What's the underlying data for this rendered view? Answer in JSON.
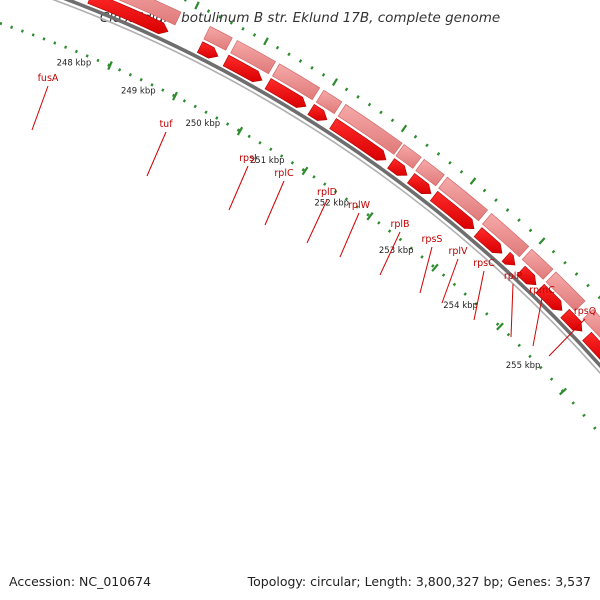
{
  "title": "Clostridium botulinum B str. Eklund 17B, complete genome",
  "footer": {
    "accession": "Accession: NC_010674",
    "stats": "Topology: circular; Length: 3,800,327 bp; Genes: 3,537"
  },
  "colors": {
    "gene_forward": "#ff0000",
    "gene_light": "#f08a8a",
    "backbone": "#777777",
    "tick": "#2e8b2e",
    "label": "#c00000"
  },
  "ticks": [
    {
      "label": "248 kbp"
    },
    {
      "label": "249 kbp"
    },
    {
      "label": "250 kbp"
    },
    {
      "label": "251 kbp"
    },
    {
      "label": "252 kbp"
    },
    {
      "label": "253 kbp"
    },
    {
      "label": "254 kbp"
    },
    {
      "label": "255 kbp"
    }
  ],
  "genes": [
    {
      "name": "fusA"
    },
    {
      "name": "tuf"
    },
    {
      "name": "rpsJ"
    },
    {
      "name": "rplC"
    },
    {
      "name": "rplD"
    },
    {
      "name": "rplW"
    },
    {
      "name": "rplB"
    },
    {
      "name": "rpsS"
    },
    {
      "name": "rplV"
    },
    {
      "name": "rpsC"
    },
    {
      "name": "rplP"
    },
    {
      "name": "rpmC"
    },
    {
      "name": "rpsQ"
    }
  ]
}
